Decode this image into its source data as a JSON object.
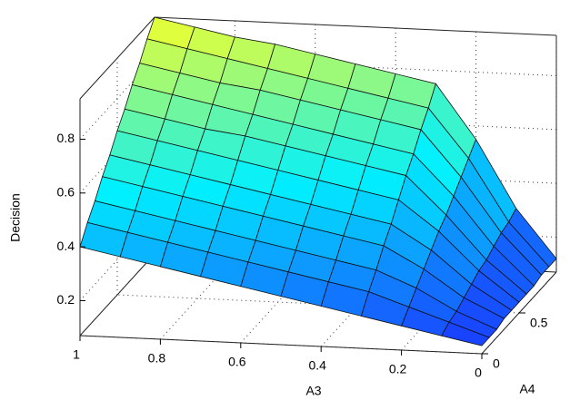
{
  "chart_data": {
    "type": "surface",
    "xlabel": "A3",
    "ylabel": "A4",
    "zlabel": "Decision",
    "x": [
      0,
      0.1,
      0.2,
      0.3,
      0.4,
      0.5,
      0.6,
      0.7,
      0.8,
      0.9,
      1
    ],
    "y": [
      0,
      0.1,
      0.2,
      0.3,
      0.4,
      0.5,
      0.6,
      0.7,
      0.8,
      0.9,
      1
    ],
    "z": [
      [
        0.1,
        0.13,
        0.16,
        0.19,
        0.22,
        0.25,
        0.28,
        0.31,
        0.34,
        0.37,
        0.4
      ],
      [
        0.1,
        0.15,
        0.2,
        0.25,
        0.28,
        0.31,
        0.34,
        0.37,
        0.4,
        0.43,
        0.46
      ],
      [
        0.1,
        0.16,
        0.24,
        0.3,
        0.33,
        0.36,
        0.39,
        0.42,
        0.45,
        0.48,
        0.51
      ],
      [
        0.11,
        0.18,
        0.28,
        0.36,
        0.39,
        0.42,
        0.45,
        0.48,
        0.51,
        0.54,
        0.57
      ],
      [
        0.11,
        0.2,
        0.32,
        0.41,
        0.44,
        0.47,
        0.5,
        0.53,
        0.56,
        0.59,
        0.62
      ],
      [
        0.11,
        0.22,
        0.36,
        0.47,
        0.5,
        0.53,
        0.56,
        0.59,
        0.62,
        0.65,
        0.68
      ],
      [
        0.11,
        0.23,
        0.39,
        0.53,
        0.56,
        0.59,
        0.62,
        0.65,
        0.67,
        0.7,
        0.73
      ],
      [
        0.11,
        0.25,
        0.43,
        0.58,
        0.61,
        0.64,
        0.67,
        0.7,
        0.73,
        0.76,
        0.79
      ],
      [
        0.12,
        0.27,
        0.47,
        0.64,
        0.67,
        0.7,
        0.73,
        0.76,
        0.78,
        0.81,
        0.84
      ],
      [
        0.12,
        0.28,
        0.51,
        0.69,
        0.72,
        0.75,
        0.78,
        0.81,
        0.84,
        0.87,
        0.9
      ],
      [
        0.12,
        0.3,
        0.55,
        0.75,
        0.78,
        0.81,
        0.84,
        0.87,
        0.89,
        0.92,
        0.95
      ]
    ],
    "xlim": [
      0,
      1
    ],
    "ylim": [
      0,
      1
    ],
    "zlim": [
      0.07,
      0.95
    ],
    "xticks": [
      0,
      0.2,
      0.4,
      0.6,
      0.8,
      1
    ],
    "yticks": [
      0,
      0.5
    ],
    "zticks": [
      0.2,
      0.4,
      0.6,
      0.8
    ],
    "grid": true,
    "colormap": [
      "#1a3cff",
      "#00f0ff",
      "#f6ff2a"
    ]
  }
}
